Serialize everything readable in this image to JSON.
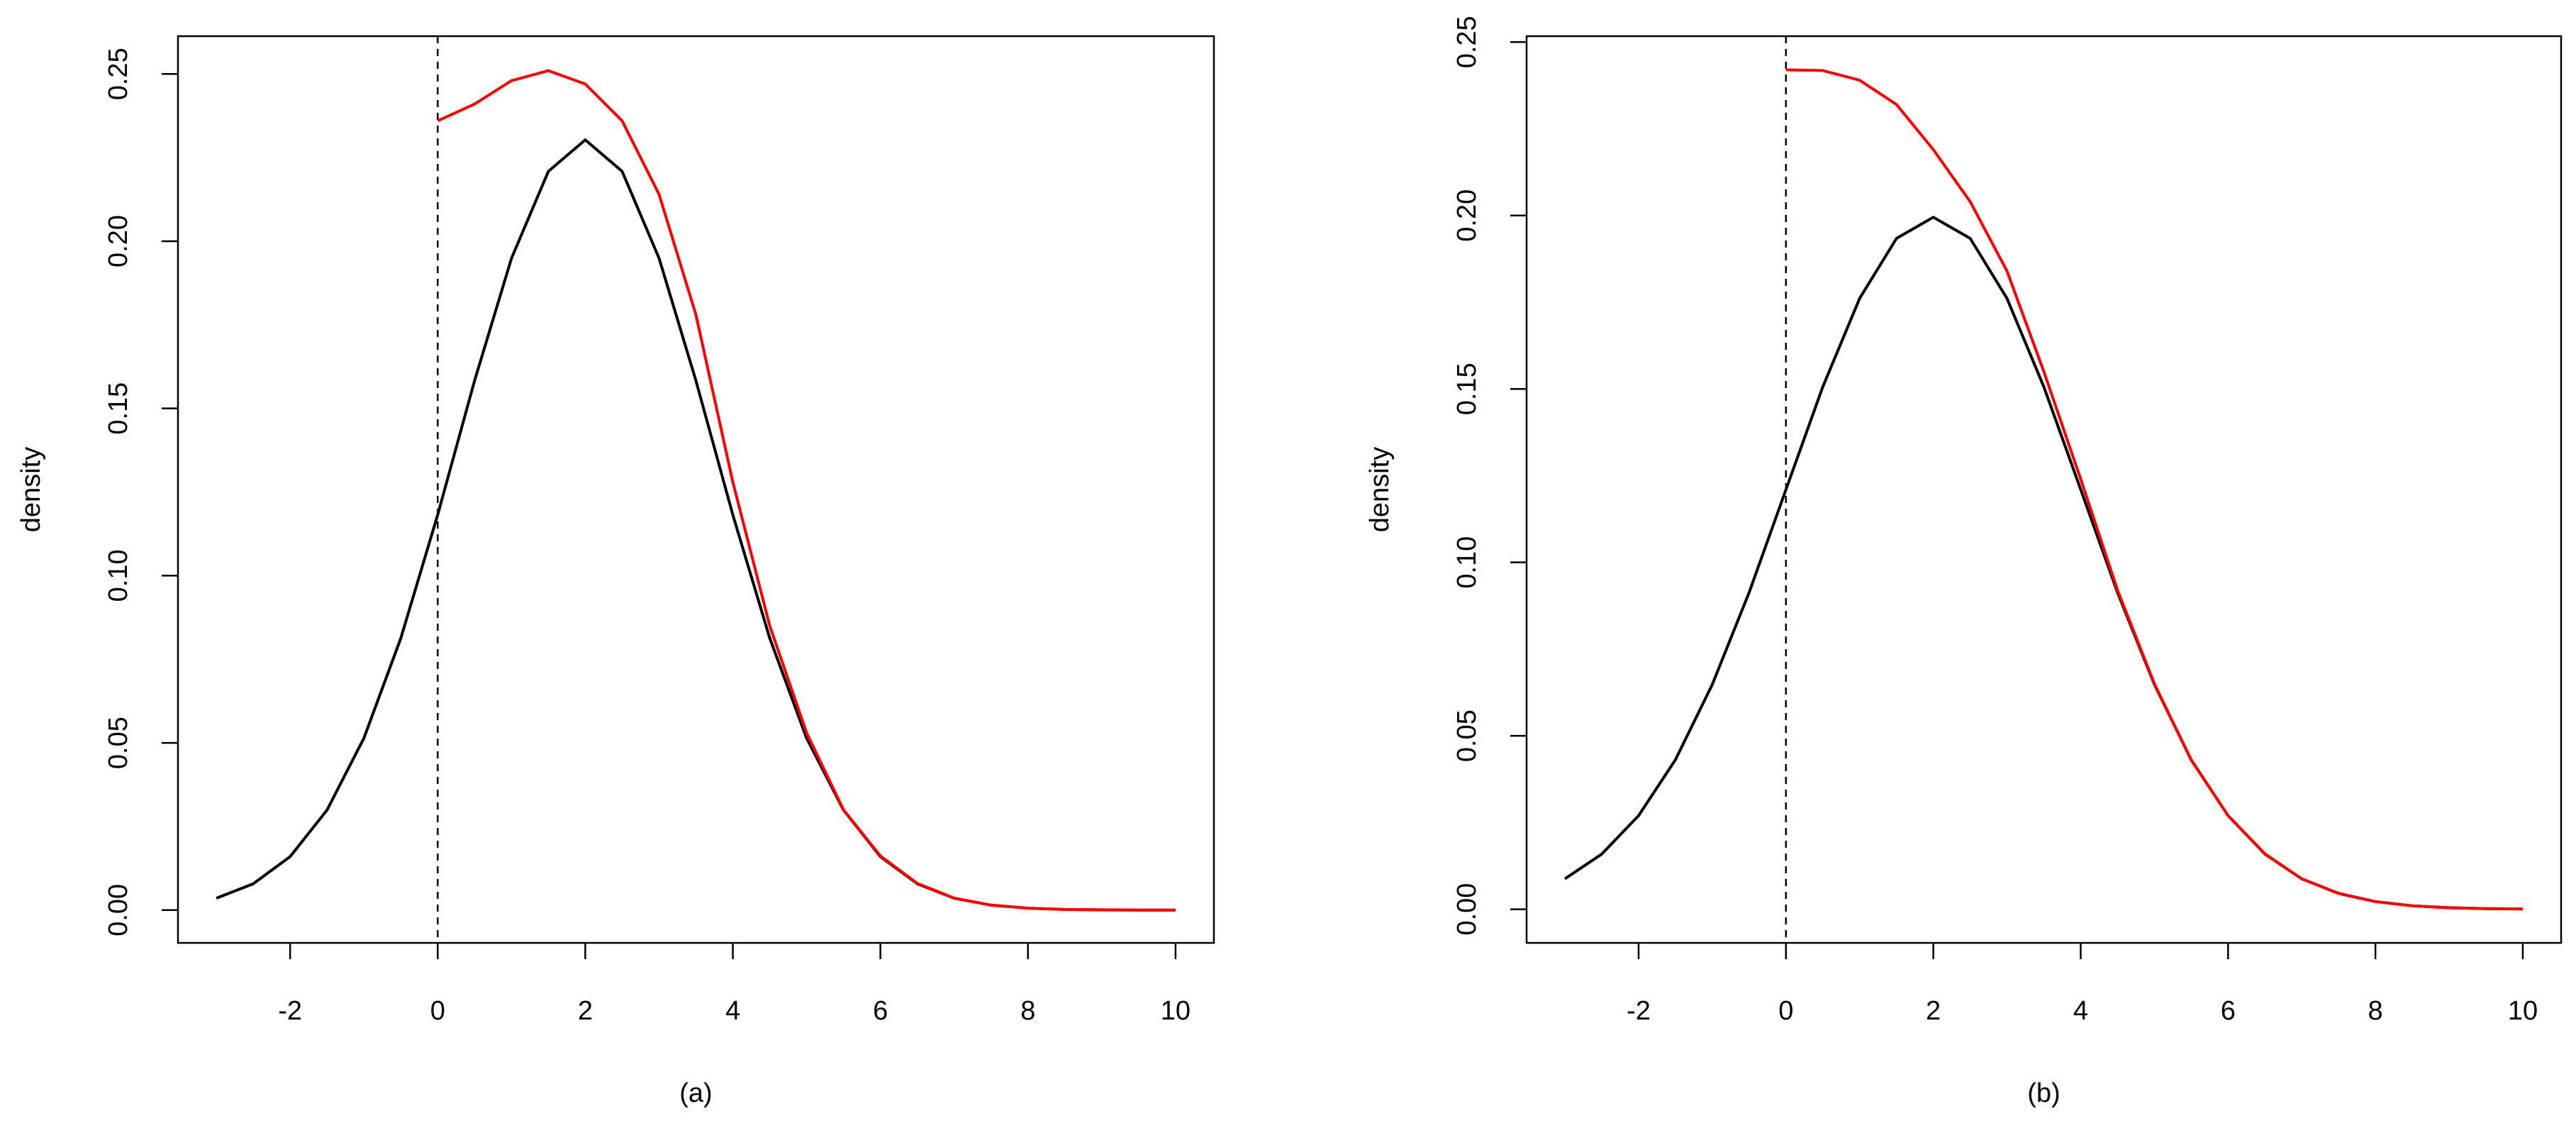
{
  "chart_data": [
    {
      "type": "line",
      "xlabel": "(a)",
      "ylabel": "density",
      "x": [
        -3,
        -2.5,
        -2,
        -1.5,
        -1,
        -0.5,
        0,
        0.5,
        1,
        1.5,
        2,
        2.5,
        3,
        3.5,
        4,
        4.5,
        5,
        5.5,
        6,
        6.5,
        7,
        7.5,
        8,
        8.5,
        9,
        9.5,
        10
      ],
      "series": [
        {
          "color": "#000000",
          "values": [
            0.00357,
            0.00788,
            0.016,
            0.0299,
            0.0514,
            0.0813,
            0.1182,
            0.1583,
            0.1949,
            0.2209,
            0.2303,
            0.2209,
            0.1949,
            0.1583,
            0.1182,
            0.0813,
            0.0514,
            0.0299,
            0.016,
            0.00788,
            0.00357,
            0.00149,
            0.00057,
            0.0002,
            7e-05,
            2e-05,
            0
          ]
        },
        {
          "color": "#ff0000",
          "values": [
            null,
            null,
            null,
            null,
            null,
            null,
            0.236,
            0.241,
            0.248,
            0.251,
            0.247,
            0.236,
            0.214,
            0.178,
            0.128,
            0.085,
            0.053,
            0.03,
            0.0162,
            0.008,
            0.0036,
            0.0015,
            0.0006,
            0.0002,
            0.0001,
            0,
            0
          ]
        }
      ],
      "vline": 0,
      "xlim": [
        -3.52,
        10.52
      ],
      "xticks": [
        -2,
        0,
        2,
        4,
        6,
        8,
        10
      ],
      "ylim": [
        -0.0098,
        0.2613
      ],
      "yticks": [
        {
          "value": 0,
          "label": "0.00"
        },
        0.05,
        {
          "value": 0.1,
          "label": "0.10"
        },
        0.15,
        {
          "value": 0.2,
          "label": "0.20"
        },
        0.25
      ]
    },
    {
      "type": "line",
      "xlabel": "(b)",
      "ylabel": "density",
      "x": [
        -3,
        -2.5,
        -2,
        -1.5,
        -1,
        -0.5,
        0,
        0.5,
        1,
        1.5,
        2,
        2.5,
        3,
        3.5,
        4,
        4.5,
        5,
        5.5,
        6,
        6.5,
        7,
        7.5,
        8,
        8.5,
        9,
        9.5,
        10
      ],
      "series": [
        {
          "color": "#000000",
          "values": [
            0.00876,
            0.0159,
            0.027,
            0.0431,
            0.0648,
            0.0913,
            0.121,
            0.1506,
            0.1761,
            0.1934,
            0.1995,
            0.1934,
            0.1761,
            0.1506,
            0.121,
            0.0913,
            0.0648,
            0.0431,
            0.027,
            0.0159,
            0.00876,
            0.00455,
            0.0022,
            0.001,
            0.00044,
            0.00018,
            7e-05
          ]
        },
        {
          "color": "#ff0000",
          "values": [
            null,
            null,
            null,
            null,
            null,
            null,
            0.242,
            0.2418,
            0.239,
            0.232,
            0.219,
            0.204,
            0.184,
            0.155,
            0.124,
            0.092,
            0.065,
            0.043,
            0.027,
            0.016,
            0.0088,
            0.0046,
            0.0022,
            0.001,
            0.0004,
            0.0002,
            0.0001
          ]
        }
      ],
      "vline": 0,
      "xlim": [
        -3.52,
        10.52
      ],
      "xticks": [
        -2,
        0,
        2,
        4,
        6,
        8,
        10
      ],
      "ylim": [
        -0.0097,
        0.2517
      ],
      "yticks": [
        {
          "value": 0,
          "label": "0.00"
        },
        0.05,
        {
          "value": 0.1,
          "label": "0.10"
        },
        0.15,
        {
          "value": 0.2,
          "label": "0.20"
        },
        0.25
      ]
    }
  ]
}
